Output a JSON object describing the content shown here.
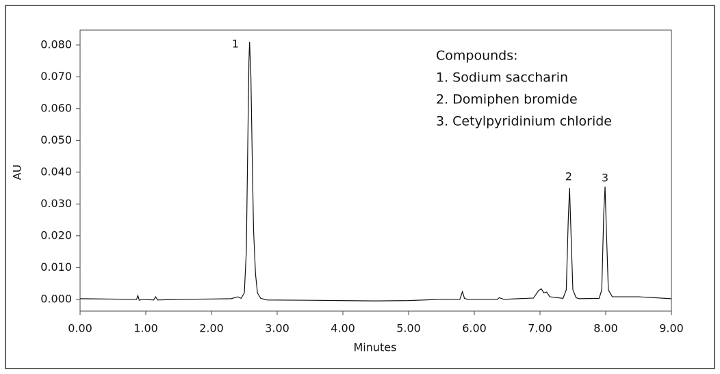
{
  "chart_data": {
    "type": "line",
    "x_label": "Minutes",
    "y_label": "AU",
    "legend_title": "Compounds:",
    "legend_items": [
      "1. Sodium saccharin",
      "2. Domiphen bromide",
      "3. Cetylpyridinium chloride"
    ],
    "peak_labels": [
      "1",
      "2",
      "3"
    ],
    "color": "#111111",
    "xlim": [
      0,
      9
    ],
    "ylim": [
      -0.0037,
      0.0847
    ],
    "xticks": [
      {
        "value": 0,
        "label": "0.00"
      },
      {
        "value": 1,
        "label": "1.00"
      },
      {
        "value": 2,
        "label": "2.00"
      },
      {
        "value": 3,
        "label": "3.00"
      },
      {
        "value": 4,
        "label": "4.00"
      },
      {
        "value": 5,
        "label": "5.00"
      },
      {
        "value": 6,
        "label": "6.00"
      },
      {
        "value": 7,
        "label": "7.00"
      },
      {
        "value": 8,
        "label": "8.00"
      },
      {
        "value": 9,
        "label": "9.00"
      }
    ],
    "yticks": [
      {
        "value": 0,
        "label": "0.000"
      },
      {
        "value": 0.01,
        "label": "0.010"
      },
      {
        "value": 0.02,
        "label": "0.020"
      },
      {
        "value": 0.03,
        "label": "0.030"
      },
      {
        "value": 0.04,
        "label": "0.040"
      },
      {
        "value": 0.05,
        "label": "0.050"
      },
      {
        "value": 0.06,
        "label": "0.060"
      },
      {
        "value": 0.07,
        "label": "0.070"
      },
      {
        "value": 0.08,
        "label": "0.080"
      }
    ],
    "x": [
      0.0,
      0.4,
      0.8,
      0.86,
      0.88,
      0.9,
      0.95,
      1.12,
      1.15,
      1.18,
      1.5,
      2.0,
      2.3,
      2.4,
      2.45,
      2.5,
      2.53,
      2.55,
      2.57,
      2.58,
      2.6,
      2.62,
      2.64,
      2.67,
      2.7,
      2.75,
      2.85,
      3.5,
      4.5,
      5.0,
      5.5,
      5.78,
      5.82,
      5.85,
      5.9,
      6.35,
      6.38,
      6.45,
      6.9,
      6.98,
      7.02,
      7.06,
      7.1,
      7.15,
      7.35,
      7.4,
      7.43,
      7.45,
      7.47,
      7.5,
      7.55,
      7.6,
      7.9,
      7.94,
      7.97,
      7.99,
      8.01,
      8.04,
      8.1,
      8.5,
      9.0
    ],
    "values": [
      0.0002,
      0.0001,
      0.0,
      0.0,
      0.0012,
      -0.0003,
      0.0,
      -0.0002,
      0.0008,
      -0.0002,
      0.0,
      0.0001,
      0.0002,
      0.0008,
      0.0003,
      0.002,
      0.015,
      0.045,
      0.075,
      0.081,
      0.07,
      0.045,
      0.022,
      0.008,
      0.002,
      0.0003,
      -0.0002,
      -0.0003,
      -0.0005,
      -0.0004,
      0.0,
      0.0,
      0.0024,
      0.0003,
      0.0,
      0.0,
      0.0005,
      0.0,
      0.0004,
      0.0028,
      0.0033,
      0.002,
      0.0023,
      0.0008,
      0.0003,
      0.003,
      0.025,
      0.035,
      0.022,
      0.003,
      0.0005,
      0.0002,
      0.0003,
      0.003,
      0.027,
      0.0355,
      0.022,
      0.003,
      0.0008,
      0.0008,
      0.0002
    ]
  }
}
